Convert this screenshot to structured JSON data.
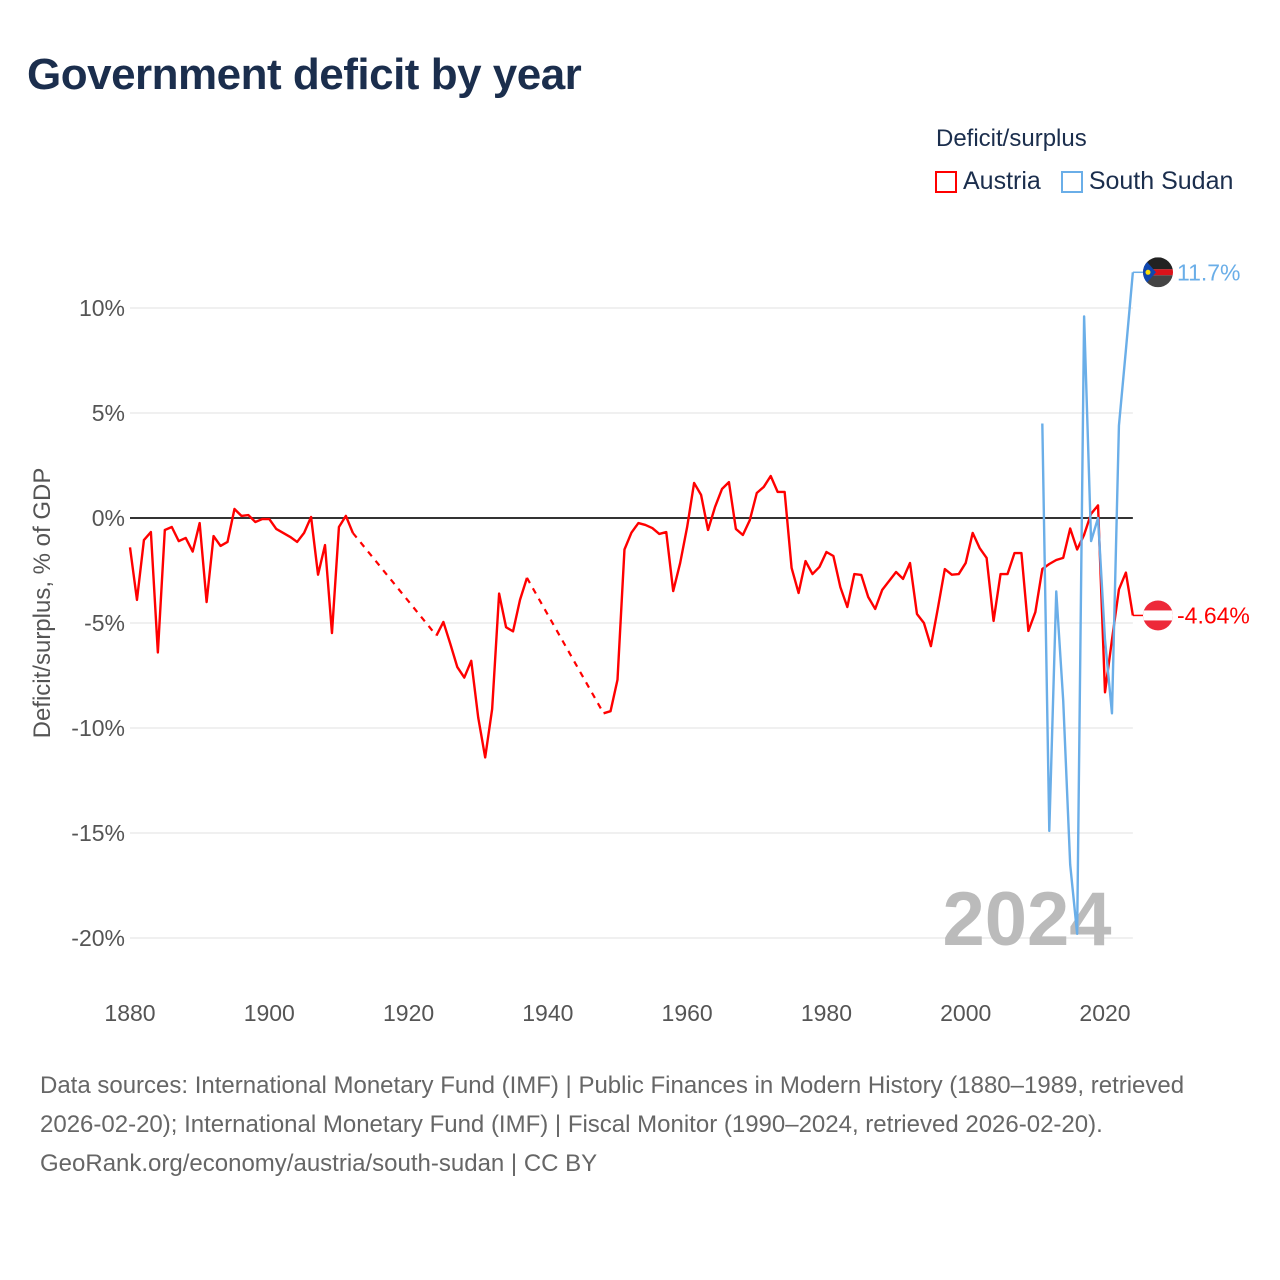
{
  "chart_data": {
    "type": "line",
    "title": "Government deficit by year",
    "ylabel": "Deficit/surplus, % of GDP",
    "xlabel": "",
    "xlim": [
      1880,
      2024
    ],
    "ylim": [
      -20,
      11.7
    ],
    "x_ticks": [
      1880,
      1900,
      1920,
      1940,
      1960,
      1980,
      2000,
      2020
    ],
    "x_tick_labels": [
      "1880",
      "1900",
      "1920",
      "1940",
      "1960",
      "1980",
      "2000",
      "2020"
    ],
    "y_ticks": [
      10,
      5,
      0,
      -5,
      -10,
      -15,
      -20
    ],
    "y_tick_labels": [
      "10%",
      "5%",
      "0%",
      "-5%",
      "-10%",
      "-15%",
      "-20%"
    ],
    "grid": true,
    "legend_title": "Deficit/surplus",
    "legend_position": "top-right",
    "year_watermark": "2024",
    "series": [
      {
        "name": "Austria",
        "color": "#ff0000",
        "x_start": 1880,
        "end_label": "-4.64%",
        "values": [
          -1.4,
          -3.9,
          -1.05,
          -0.67,
          -6.4,
          -0.57,
          -0.43,
          -1.1,
          -0.95,
          -1.6,
          -0.24,
          -4.0,
          -0.86,
          -1.33,
          -1.14,
          0.43,
          0.1,
          0.14,
          -0.19,
          -0.05,
          -0.05,
          -0.52,
          -0.71,
          -0.9,
          -1.14,
          -0.71,
          0.05,
          -2.7,
          -1.29,
          -5.48,
          -0.43,
          0.1,
          -0.71,
          null,
          null,
          null,
          null,
          null,
          null,
          null,
          null,
          null,
          null,
          null,
          -5.6,
          -4.95,
          -6.0,
          -7.1,
          -7.6,
          -6.8,
          -9.5,
          -11.4,
          -9.1,
          -3.6,
          -5.2,
          -5.4,
          -3.9,
          -2.85,
          null,
          null,
          null,
          null,
          null,
          null,
          null,
          null,
          null,
          null,
          -9.3,
          -9.2,
          -7.7,
          -1.5,
          -0.7,
          -0.24,
          -0.33,
          -0.48,
          -0.76,
          -0.67,
          -3.48,
          -2.14,
          -0.43,
          1.67,
          1.1,
          -0.57,
          0.52,
          1.38,
          1.71,
          -0.52,
          -0.81,
          -0.1,
          1.19,
          1.48,
          2.0,
          1.24,
          1.24,
          -2.38,
          -3.57,
          -2.05,
          -2.67,
          -2.33,
          -1.62,
          -1.81,
          -3.29,
          -4.24,
          -2.67,
          -2.71,
          -3.76,
          -4.33,
          -3.43,
          -3.0,
          -2.57,
          -2.9,
          -2.14,
          -4.57,
          -5.0,
          -6.1,
          -4.3,
          -2.43,
          -2.7,
          -2.67,
          -2.14,
          -0.71,
          -1.43,
          -1.9,
          -4.9,
          -2.67,
          -2.67,
          -1.67,
          -1.67,
          -5.38,
          -4.48,
          -2.43,
          -2.19,
          -2.0,
          -1.9,
          -0.5,
          -1.5,
          -0.8,
          0.2,
          0.6,
          -8.3,
          -5.8,
          -3.4,
          -2.6,
          -4.64
        ]
      },
      {
        "name": "South Sudan",
        "color": "#6aaee8",
        "x_start": 2011,
        "end_label": "11.7%",
        "values": [
          4.5,
          -14.9,
          -3.5,
          -8.7,
          -16.5,
          -19.8,
          9.6,
          -1.1,
          0.0,
          -5.8,
          -9.3,
          4.4,
          8.0,
          11.7
        ]
      }
    ]
  },
  "footer": {
    "sources": "Data sources: International Monetary Fund (IMF) | Public Finances in Modern History (1880–1989, retrieved 2026-02-20); International Monetary Fund (IMF) | Fiscal Monitor (1990–2024, retrieved 2026-02-20).",
    "credit": "GeoRank.org/economy/austria/south-sudan | CC BY"
  }
}
